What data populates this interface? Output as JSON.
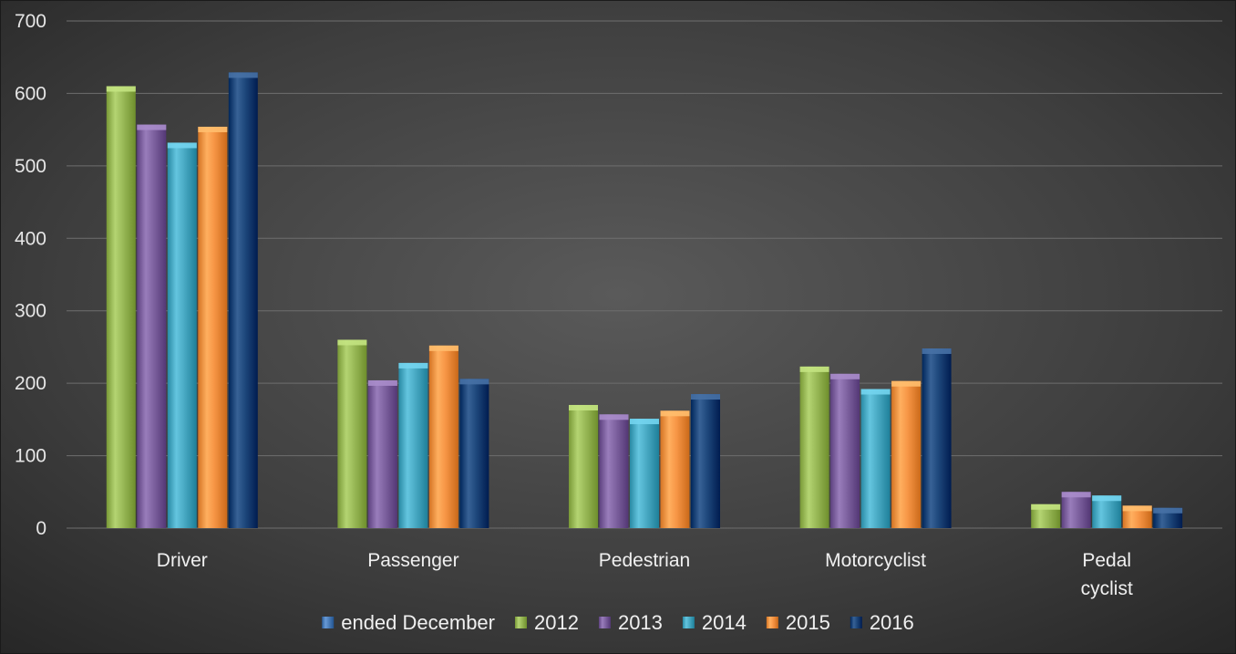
{
  "chart_data": {
    "type": "bar",
    "title": "",
    "xlabel": "",
    "ylabel": "",
    "categories": [
      "Driver",
      "Passenger",
      "Pedestrian",
      "Motorcyclist",
      "Pedal cyclist"
    ],
    "category_lines": [
      [
        "Driver"
      ],
      [
        "Passenger"
      ],
      [
        "Pedestrian"
      ],
      [
        "Motorcyclist"
      ],
      [
        "Pedal",
        "cyclist"
      ]
    ],
    "ylim": [
      0,
      700
    ],
    "yticks": [
      0,
      100,
      200,
      300,
      400,
      500,
      600,
      700
    ],
    "grid": true,
    "legend_position": "bottom",
    "legend_entries": [
      {
        "name": "ended December",
        "color": "#4f81bd"
      },
      {
        "name": "2012",
        "color": "#9bbb59"
      },
      {
        "name": "2013",
        "color": "#8064a2"
      },
      {
        "name": "2014",
        "color": "#4bacc6"
      },
      {
        "name": "2015",
        "color": "#f79646"
      },
      {
        "name": "2016",
        "color": "#1f497d"
      }
    ],
    "series": [
      {
        "name": "2012",
        "color": "#9bbb59",
        "values": [
          610,
          260,
          170,
          223,
          33
        ]
      },
      {
        "name": "2013",
        "color": "#8064a2",
        "values": [
          557,
          204,
          157,
          213,
          50
        ]
      },
      {
        "name": "2014",
        "color": "#4bacc6",
        "values": [
          532,
          228,
          151,
          192,
          45
        ]
      },
      {
        "name": "2015",
        "color": "#f79646",
        "values": [
          554,
          252,
          162,
          203,
          31
        ]
      },
      {
        "name": "2016",
        "color": "#1f497d",
        "values": [
          629,
          206,
          185,
          248,
          28
        ]
      }
    ]
  }
}
